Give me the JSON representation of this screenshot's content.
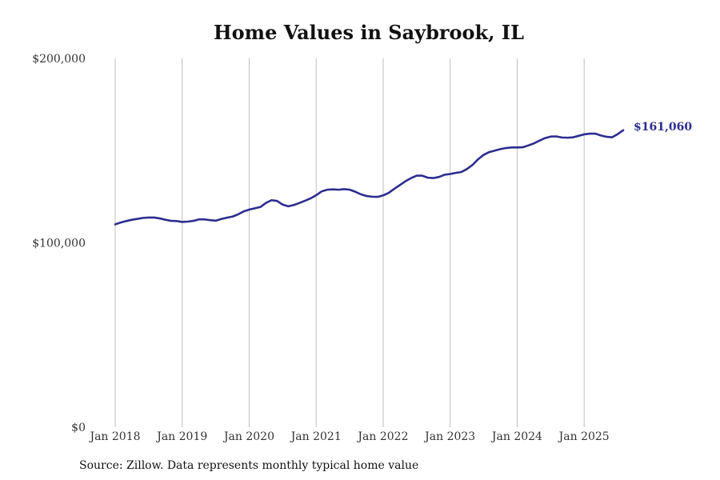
{
  "chart_data": {
    "type": "line",
    "title": "Home Values in Saybrook, IL",
    "xlabel": "",
    "ylabel": "",
    "ylim": [
      0,
      200000
    ],
    "y_ticks": [
      {
        "value": 0,
        "label": "$0"
      },
      {
        "value": 100000,
        "label": "$100,000"
      },
      {
        "value": 200000,
        "label": "$200,000"
      }
    ],
    "x_ticks": [
      {
        "value": 2018.0,
        "label": "Jan 2018"
      },
      {
        "value": 2019.0,
        "label": "Jan 2019"
      },
      {
        "value": 2020.0,
        "label": "Jan 2020"
      },
      {
        "value": 2021.0,
        "label": "Jan 2021"
      },
      {
        "value": 2022.0,
        "label": "Jan 2022"
      },
      {
        "value": 2023.0,
        "label": "Jan 2023"
      },
      {
        "value": 2024.0,
        "label": "Jan 2024"
      },
      {
        "value": 2025.0,
        "label": "Jan 2025"
      }
    ],
    "xlim": [
      2018.0,
      2025.583
    ],
    "grid": {
      "vertical": true,
      "horizontal": false
    },
    "line_color": "#2e2d8f",
    "series": [
      {
        "end_label": "$161,060",
        "points": [
          [
            2018.0,
            110000
          ],
          [
            2018.083,
            111000
          ],
          [
            2018.167,
            111800
          ],
          [
            2018.25,
            112500
          ],
          [
            2018.333,
            113000
          ],
          [
            2018.417,
            113500
          ],
          [
            2018.5,
            113700
          ],
          [
            2018.583,
            113700
          ],
          [
            2018.667,
            113200
          ],
          [
            2018.75,
            112500
          ],
          [
            2018.833,
            111900
          ],
          [
            2018.917,
            111800
          ],
          [
            2019.0,
            111300
          ],
          [
            2019.083,
            111500
          ],
          [
            2019.167,
            111900
          ],
          [
            2019.25,
            112700
          ],
          [
            2019.333,
            112700
          ],
          [
            2019.417,
            112300
          ],
          [
            2019.5,
            112000
          ],
          [
            2019.583,
            112900
          ],
          [
            2019.667,
            113600
          ],
          [
            2019.75,
            114200
          ],
          [
            2019.833,
            115400
          ],
          [
            2019.917,
            117000
          ],
          [
            2020.0,
            118000
          ],
          [
            2020.083,
            118700
          ],
          [
            2020.167,
            119400
          ],
          [
            2020.25,
            121600
          ],
          [
            2020.333,
            123100
          ],
          [
            2020.417,
            122700
          ],
          [
            2020.5,
            120700
          ],
          [
            2020.583,
            119800
          ],
          [
            2020.667,
            120500
          ],
          [
            2020.75,
            121600
          ],
          [
            2020.833,
            122800
          ],
          [
            2020.917,
            124100
          ],
          [
            2021.0,
            125800
          ],
          [
            2021.083,
            127900
          ],
          [
            2021.167,
            128800
          ],
          [
            2021.25,
            129000
          ],
          [
            2021.333,
            128800
          ],
          [
            2021.417,
            129100
          ],
          [
            2021.5,
            128800
          ],
          [
            2021.583,
            127700
          ],
          [
            2021.667,
            126300
          ],
          [
            2021.75,
            125400
          ],
          [
            2021.833,
            125000
          ],
          [
            2021.917,
            124900
          ],
          [
            2022.0,
            125700
          ],
          [
            2022.083,
            127100
          ],
          [
            2022.167,
            129300
          ],
          [
            2022.25,
            131300
          ],
          [
            2022.333,
            133400
          ],
          [
            2022.417,
            135100
          ],
          [
            2022.5,
            136400
          ],
          [
            2022.583,
            136400
          ],
          [
            2022.667,
            135300
          ],
          [
            2022.75,
            135100
          ],
          [
            2022.833,
            135700
          ],
          [
            2022.917,
            136900
          ],
          [
            2023.0,
            137300
          ],
          [
            2023.083,
            137900
          ],
          [
            2023.167,
            138400
          ],
          [
            2023.25,
            140000
          ],
          [
            2023.333,
            142200
          ],
          [
            2023.417,
            145300
          ],
          [
            2023.5,
            147700
          ],
          [
            2023.583,
            149200
          ],
          [
            2023.667,
            150000
          ],
          [
            2023.75,
            150800
          ],
          [
            2023.833,
            151400
          ],
          [
            2023.917,
            151700
          ],
          [
            2024.0,
            151700
          ],
          [
            2024.083,
            151800
          ],
          [
            2024.167,
            152800
          ],
          [
            2024.25,
            153900
          ],
          [
            2024.333,
            155400
          ],
          [
            2024.417,
            156800
          ],
          [
            2024.5,
            157600
          ],
          [
            2024.583,
            157700
          ],
          [
            2024.667,
            157100
          ],
          [
            2024.75,
            157000
          ],
          [
            2024.833,
            157200
          ],
          [
            2024.917,
            158000
          ],
          [
            2025.0,
            158800
          ],
          [
            2025.083,
            159200
          ],
          [
            2025.167,
            159200
          ],
          [
            2025.25,
            158200
          ],
          [
            2025.333,
            157500
          ],
          [
            2025.417,
            157200
          ],
          [
            2025.5,
            158900
          ],
          [
            2025.583,
            161060
          ]
        ]
      }
    ]
  },
  "footer": {
    "source": "Source: Zillow. Data represents monthly typical home value"
  }
}
